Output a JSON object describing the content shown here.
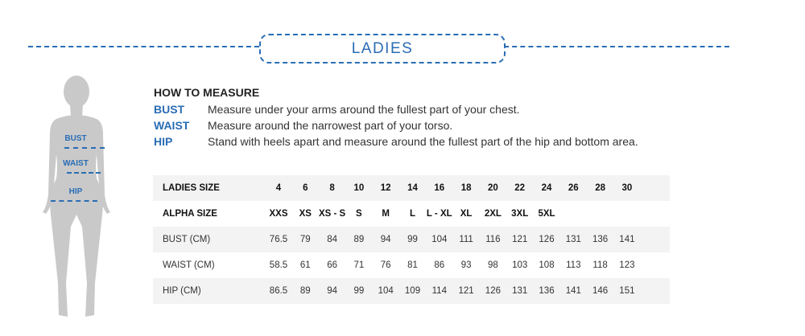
{
  "header": {
    "title": "LADIES"
  },
  "figure": {
    "labels": [
      "BUST",
      "WAIST",
      "HIP"
    ]
  },
  "how_to_measure": {
    "title": "HOW TO MEASURE",
    "items": [
      {
        "key": "BUST",
        "text": "Measure under your arms around the fullest part of your chest."
      },
      {
        "key": "WAIST",
        "text": "Measure around the narrowest part of your torso."
      },
      {
        "key": "HIP",
        "text": "Stand with heels apart and measure around the fullest part of the hip and bottom area."
      }
    ]
  },
  "table": {
    "rows": [
      {
        "label": "LADIES SIZE",
        "values": [
          "4",
          "6",
          "8",
          "10",
          "12",
          "14",
          "16",
          "18",
          "20",
          "22",
          "24",
          "26",
          "28",
          "30"
        ]
      },
      {
        "label": "ALPHA SIZE",
        "values": [
          "XXS",
          "XS",
          "XS - S",
          "S",
          "M",
          "L",
          "L - XL",
          "XL",
          "2XL",
          "3XL",
          "5XL",
          "",
          "",
          ""
        ]
      },
      {
        "label": "BUST (CM)",
        "values": [
          "76.5",
          "79",
          "84",
          "89",
          "94",
          "99",
          "104",
          "111",
          "116",
          "121",
          "126",
          "131",
          "136",
          "141"
        ]
      },
      {
        "label": "WAIST (CM)",
        "values": [
          "58.5",
          "61",
          "66",
          "71",
          "76",
          "81",
          "86",
          "93",
          "98",
          "103",
          "108",
          "113",
          "118",
          "123"
        ]
      },
      {
        "label": "HIP (CM)",
        "values": [
          "86.5",
          "89",
          "94",
          "99",
          "104",
          "109",
          "114",
          "121",
          "126",
          "131",
          "136",
          "141",
          "146",
          "151"
        ]
      }
    ]
  },
  "colors": {
    "accent": "#2a6db5",
    "silhouette": "#c9c9c9",
    "row_shade": "#f3f3f3"
  }
}
